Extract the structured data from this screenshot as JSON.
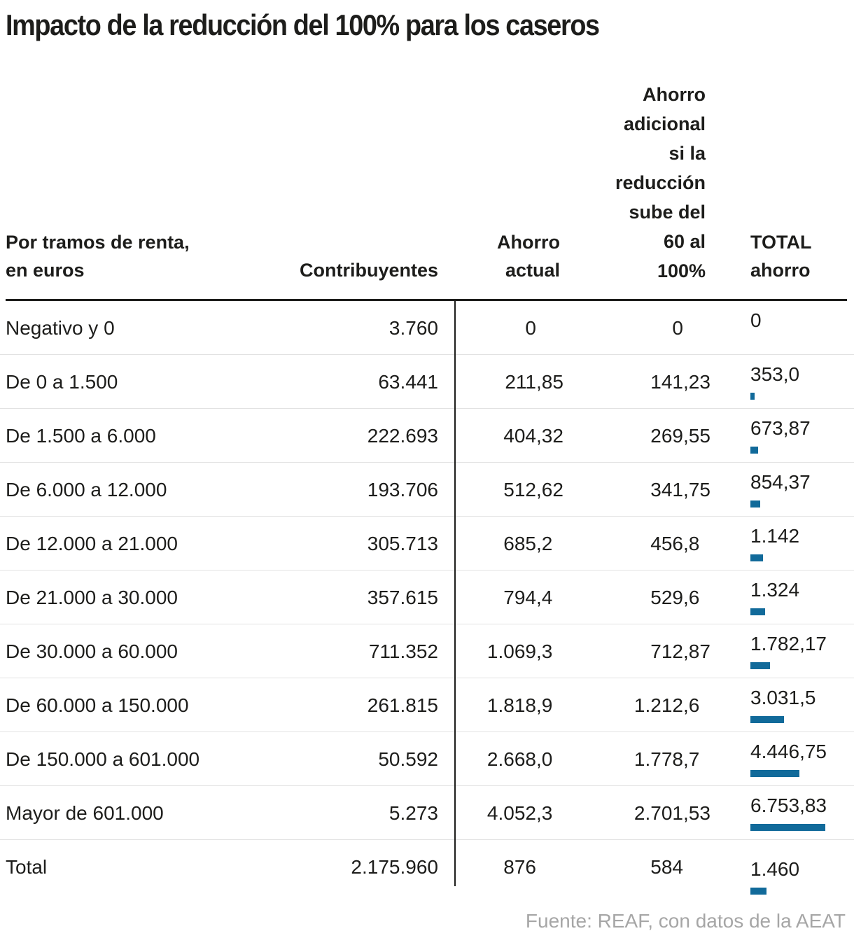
{
  "title": "Impacto de la reducción del 100% para los caseros",
  "source": "Fuente: REAF, con datos de la AEAT",
  "columns": {
    "tramos": [
      "Por tramos de renta,",
      "en euros"
    ],
    "contribuyentes": "Contribuyentes",
    "ahorro_actual": [
      "Ahorro",
      "actual"
    ],
    "ahorro_adicional": [
      "Ahorro",
      "adicional",
      "si la",
      "reducción",
      "sube del",
      "60 al",
      "100%"
    ],
    "total_ahorro": [
      "TOTAL",
      "ahorro"
    ]
  },
  "chart_data": {
    "type": "table",
    "bar_color": "#116a9a",
    "text_color": "#1d1d1b",
    "divider_color": "#e2e2e2",
    "source_color": "#a6a6a6",
    "bar_column": "total_ahorro",
    "bar_max_value": 6753.83,
    "rows": [
      {
        "tramo": "Negativo y 0",
        "contribuyentes": "3.760",
        "ahorro_actual": "0",
        "ahorro_adicional": "0",
        "total_ahorro": "0",
        "total_valor": 0
      },
      {
        "tramo": "De 0 a 1.500",
        "contribuyentes": "63.441",
        "ahorro_actual": "211,85",
        "ahorro_adicional": "141,23",
        "total_ahorro": "353,0",
        "total_valor": 353.0
      },
      {
        "tramo": "De 1.500 a 6.000",
        "contribuyentes": "222.693",
        "ahorro_actual": "404,32",
        "ahorro_adicional": "269,55",
        "total_ahorro": "673,87",
        "total_valor": 673.87
      },
      {
        "tramo": "De 6.000 a 12.000",
        "contribuyentes": "193.706",
        "ahorro_actual": "512,62",
        "ahorro_adicional": "341,75",
        "total_ahorro": "854,37",
        "total_valor": 854.37
      },
      {
        "tramo": "De 12.000 a 21.000",
        "contribuyentes": "305.713",
        "ahorro_actual": "685,2",
        "ahorro_adicional": "456,8",
        "total_ahorro": "1.142",
        "total_valor": 1142
      },
      {
        "tramo": "De 21.000 a 30.000",
        "contribuyentes": "357.615",
        "ahorro_actual": "794,4",
        "ahorro_adicional": "529,6",
        "total_ahorro": "1.324",
        "total_valor": 1324
      },
      {
        "tramo": "De 30.000 a 60.000",
        "contribuyentes": "711.352",
        "ahorro_actual": "1.069,3",
        "ahorro_adicional": "712,87",
        "total_ahorro": "1.782,17",
        "total_valor": 1782.17
      },
      {
        "tramo": "De 60.000 a 150.000",
        "contribuyentes": "261.815",
        "ahorro_actual": "1.818,9",
        "ahorro_adicional": "1.212,6",
        "total_ahorro": "3.031,5",
        "total_valor": 3031.5
      },
      {
        "tramo": "De 150.000 a 601.000",
        "contribuyentes": "50.592",
        "ahorro_actual": "2.668,0",
        "ahorro_adicional": "1.778,7",
        "total_ahorro": "4.446,75",
        "total_valor": 4446.75
      },
      {
        "tramo": "Mayor de 601.000",
        "contribuyentes": "5.273",
        "ahorro_actual": "4.052,3",
        "ahorro_adicional": "2.701,53",
        "total_ahorro": "6.753,83",
        "total_valor": 6753.83
      },
      {
        "tramo": "Total",
        "contribuyentes": "2.175.960",
        "ahorro_actual": "876",
        "ahorro_adicional": "584",
        "total_ahorro": "1.460",
        "total_valor": 1460
      }
    ]
  }
}
